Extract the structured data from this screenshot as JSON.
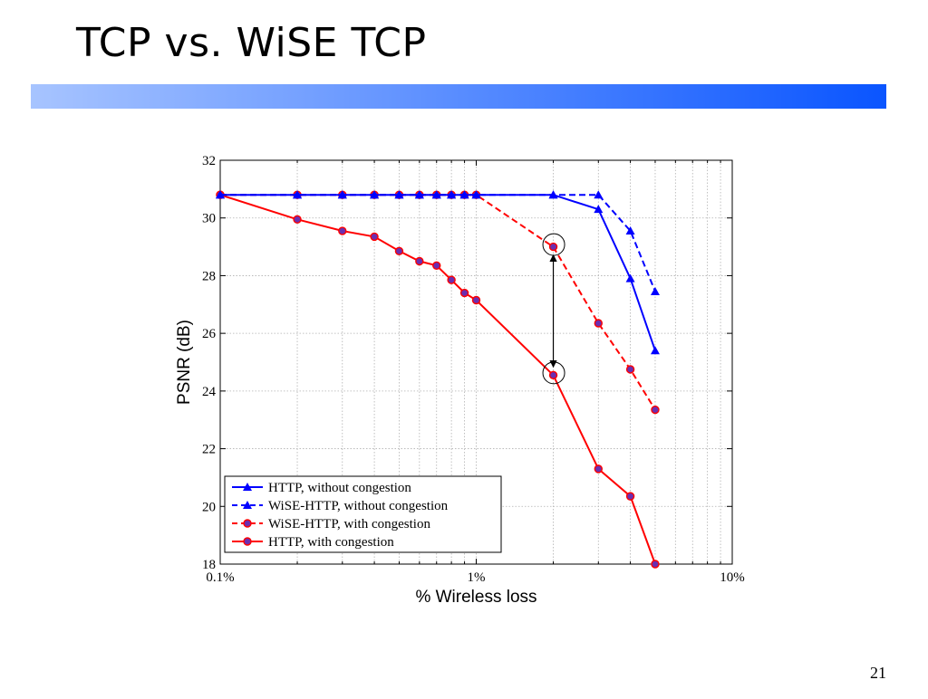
{
  "slide": {
    "title": "TCP vs. WiSE TCP",
    "page_number": "21"
  },
  "colors": {
    "bar_start": "#a7c4ff",
    "bar_end": "#0a55ff",
    "blue": "#0000ff",
    "red": "#ff0000",
    "marker_fill": "#6b2fb0"
  },
  "chart_data": {
    "type": "line",
    "x_scale": "log",
    "xlabel": "% Wireless loss",
    "ylabel": "PSNR (dB)",
    "xlim": [
      0.1,
      10
    ],
    "ylim": [
      18,
      32
    ],
    "x_tick_values": [
      0.1,
      1,
      10
    ],
    "x_tick_labels": [
      "0.1%",
      "1%",
      "10%"
    ],
    "y_ticks": [
      18,
      20,
      22,
      24,
      26,
      28,
      30,
      32
    ],
    "grid": true,
    "legend_position": "bottom-left",
    "series": [
      {
        "name": "HTTP, without congestion",
        "color": "#0000ff",
        "dash": "solid",
        "marker": "triangle",
        "x": [
          0.1,
          0.2,
          0.3,
          0.4,
          0.5,
          0.6,
          0.7,
          0.8,
          0.9,
          1.0,
          2.0,
          3.0,
          4.0,
          5.0
        ],
        "y": [
          30.8,
          30.8,
          30.8,
          30.8,
          30.8,
          30.8,
          30.8,
          30.8,
          30.8,
          30.8,
          30.8,
          30.3,
          27.9,
          25.4
        ]
      },
      {
        "name": "WiSE-HTTP, without congestion",
        "color": "#0000ff",
        "dash": "dashed",
        "marker": "triangle",
        "x": [
          0.1,
          0.2,
          0.3,
          0.4,
          0.5,
          0.6,
          0.7,
          0.8,
          0.9,
          1.0,
          2.0,
          3.0,
          4.0,
          5.0
        ],
        "y": [
          30.8,
          30.8,
          30.8,
          30.8,
          30.8,
          30.8,
          30.8,
          30.8,
          30.8,
          30.8,
          30.8,
          30.8,
          29.55,
          27.45
        ]
      },
      {
        "name": "WiSE-HTTP, with congestion",
        "color": "#ff0000",
        "dash": "dashed",
        "marker": "circle",
        "x": [
          0.1,
          0.2,
          0.3,
          0.4,
          0.5,
          0.6,
          0.7,
          0.8,
          0.9,
          1.0,
          2.0,
          3.0,
          4.0,
          5.0
        ],
        "y": [
          30.8,
          30.8,
          30.8,
          30.8,
          30.8,
          30.8,
          30.8,
          30.8,
          30.8,
          30.8,
          29.0,
          26.35,
          24.75,
          23.35
        ]
      },
      {
        "name": "HTTP, with congestion",
        "color": "#ff0000",
        "dash": "solid",
        "marker": "circle",
        "x": [
          0.1,
          0.2,
          0.3,
          0.4,
          0.5,
          0.6,
          0.7,
          0.8,
          0.9,
          1.0,
          2.0,
          3.0,
          4.0,
          5.0
        ],
        "y": [
          30.8,
          29.95,
          29.55,
          29.35,
          28.85,
          28.5,
          28.35,
          27.85,
          27.4,
          27.15,
          24.55,
          21.3,
          20.35,
          18.0
        ]
      }
    ],
    "annotation": {
      "type": "double-arrow",
      "x": 2.0,
      "y_from": 29.0,
      "y_to": 24.55,
      "circled_points": [
        [
          2.0,
          29.0
        ],
        [
          2.0,
          24.55
        ]
      ]
    }
  }
}
